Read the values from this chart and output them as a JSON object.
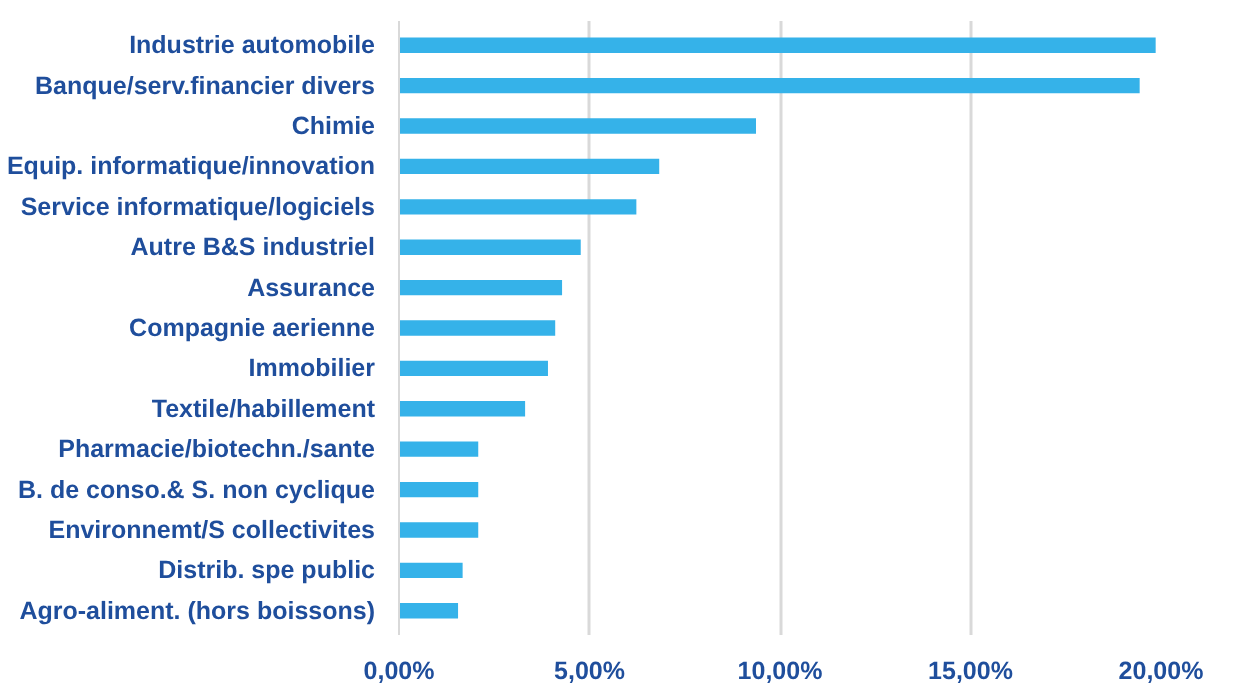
{
  "chart_data": {
    "type": "bar",
    "orientation": "horizontal",
    "categories": [
      "Industrie automobile",
      "Banque/serv.financier divers",
      "Chimie",
      "Equip. informatique/innovation",
      "Service informatique/logiciels",
      "Autre B&S industriel",
      "Assurance",
      "Compagnie aerienne",
      "Immobilier",
      "Textile/habillement",
      "Pharmacie/biotechn./sante",
      "B. de conso.& S. non cyclique",
      "Environnemt/S collectivites",
      "Distrib. spe public",
      "Agro-aliment. (hors boissons)"
    ],
    "values": [
      19.86,
      19.44,
      9.37,
      6.83,
      6.23,
      4.77,
      4.28,
      4.1,
      3.91,
      3.31,
      2.08,
      2.08,
      2.08,
      1.67,
      1.55
    ],
    "color": "#35b2e9",
    "xlim": [
      0,
      20
    ],
    "xticks": [
      {
        "value": 0,
        "label": "0,00%"
      },
      {
        "value": 5,
        "label": "5,00%"
      },
      {
        "value": 10,
        "label": "10,00%"
      },
      {
        "value": 15,
        "label": "15,00%"
      },
      {
        "value": 20,
        "label": "20,00%"
      }
    ],
    "grid": "x"
  }
}
